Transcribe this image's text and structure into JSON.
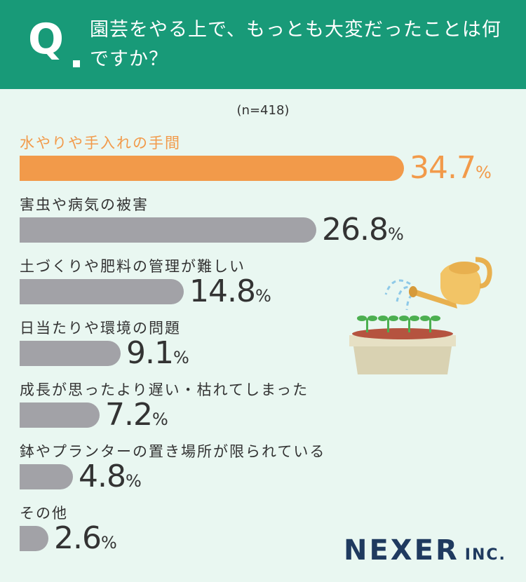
{
  "header": {
    "q_mark": "Q",
    "question": "園芸をやる上で、もっとも大変だったことは何ですか？"
  },
  "sample_size": "(n=418)",
  "chart_data": {
    "type": "bar",
    "orientation": "horizontal",
    "title": "園芸をやる上で、もっとも大変だったことは何ですか？",
    "unit": "%",
    "categories": [
      "水やりや手入れの手間",
      "害虫や病気の被害",
      "土づくりや肥料の管理が難しい",
      "日当たりや環境の問題",
      "成長が思ったより遅い・枯れてしまった",
      "鉢やプランターの置き場所が限られている",
      "その他"
    ],
    "values": [
      34.7,
      26.8,
      14.8,
      9.1,
      7.2,
      4.8,
      2.6
    ],
    "value_labels": [
      "34.7",
      "26.8",
      "14.8",
      "9.1",
      "7.2",
      "4.8",
      "2.6"
    ],
    "highlight_index": 0,
    "colors": {
      "highlight": "#f29a4a",
      "default": "#a2a2a7"
    }
  },
  "logo": {
    "main": "NEXER",
    "sub": "INC."
  },
  "colors": {
    "header_bg": "#189a78",
    "page_bg": "#e9f7f1",
    "logo": "#1f3a5f"
  },
  "illustration": {
    "icon": "watering-can-planter-icon"
  }
}
